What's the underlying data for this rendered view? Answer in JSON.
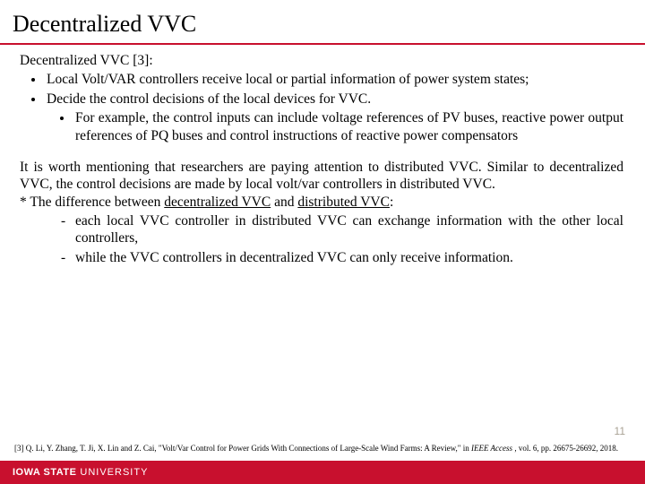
{
  "title": "Decentralized VVC",
  "intro": "Decentralized VVC [3]:",
  "bullets_level1": [
    "Local Volt/VAR controllers receive local or partial information of power system states;",
    "Decide the control decisions of the local devices for VVC."
  ],
  "bullets_level2": [
    "For example, the control inputs can include voltage references of PV buses, reactive power output references of PQ buses and control instructions of reactive power compensators"
  ],
  "para2": "It is worth mentioning that researchers are paying attention to distributed VVC. Similar to decentralized VVC, the control decisions are made by local volt/var controllers in distributed VVC.",
  "diff_prefix": "* The difference between ",
  "diff_u1": "decentralized VVC",
  "diff_mid": " and ",
  "diff_u2": "distributed VVC",
  "diff_suffix": ":",
  "dashes": [
    "each local VVC controller in distributed VVC can exchange information with the other local controllers,",
    "while the VVC controllers in decentralized VVC can only receive information."
  ],
  "page_number": "11",
  "ref_pre": "[3] Q. Li, Y. Zhang, T. Ji, X. Lin and Z. Cai, \"Volt/Var Control for Power Grids With Connections of Large-Scale Wind Farms: A Review,\" in ",
  "ref_journal": "IEEE Access",
  "ref_post": " , vol. 6, pp. 26675-26692, 2018.",
  "footer_main": "IOWA STATE",
  "footer_sub": "UNIVERSITY",
  "colors": {
    "accent": "#c8102e",
    "pagenum": "#a9a295"
  }
}
